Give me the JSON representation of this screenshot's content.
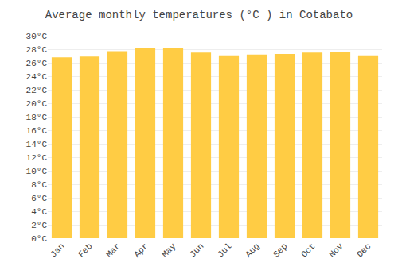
{
  "chart_data": {
    "type": "bar",
    "title": "Average monthly temperatures (°C ) in Cotabato",
    "categories": [
      "Jan",
      "Feb",
      "Mar",
      "Apr",
      "May",
      "Jun",
      "Jul",
      "Aug",
      "Sep",
      "Oct",
      "Nov",
      "Dec"
    ],
    "values": [
      26.8,
      26.9,
      27.7,
      28.2,
      28.2,
      27.5,
      27.1,
      27.2,
      27.3,
      27.5,
      27.6,
      27.1
    ],
    "color": "#FFCC44",
    "ylim": [
      0,
      30
    ],
    "yticks": [
      {
        "value": 0,
        "label": "0°C"
      },
      {
        "value": 2,
        "label": "2°C"
      },
      {
        "value": 4,
        "label": "4°C"
      },
      {
        "value": 6,
        "label": "6°C"
      },
      {
        "value": 8,
        "label": "8°C"
      },
      {
        "value": 10,
        "label": "10°C"
      },
      {
        "value": 12,
        "label": "12°C"
      },
      {
        "value": 14,
        "label": "14°C"
      },
      {
        "value": 16,
        "label": "16°C"
      },
      {
        "value": 18,
        "label": "18°C"
      },
      {
        "value": 20,
        "label": "20°C"
      },
      {
        "value": 22,
        "label": "22°C"
      },
      {
        "value": 24,
        "label": "24°C"
      },
      {
        "value": 26,
        "label": "26°C"
      },
      {
        "value": 28,
        "label": "28°C"
      },
      {
        "value": 30,
        "label": "30°C"
      }
    ],
    "grid": true
  }
}
